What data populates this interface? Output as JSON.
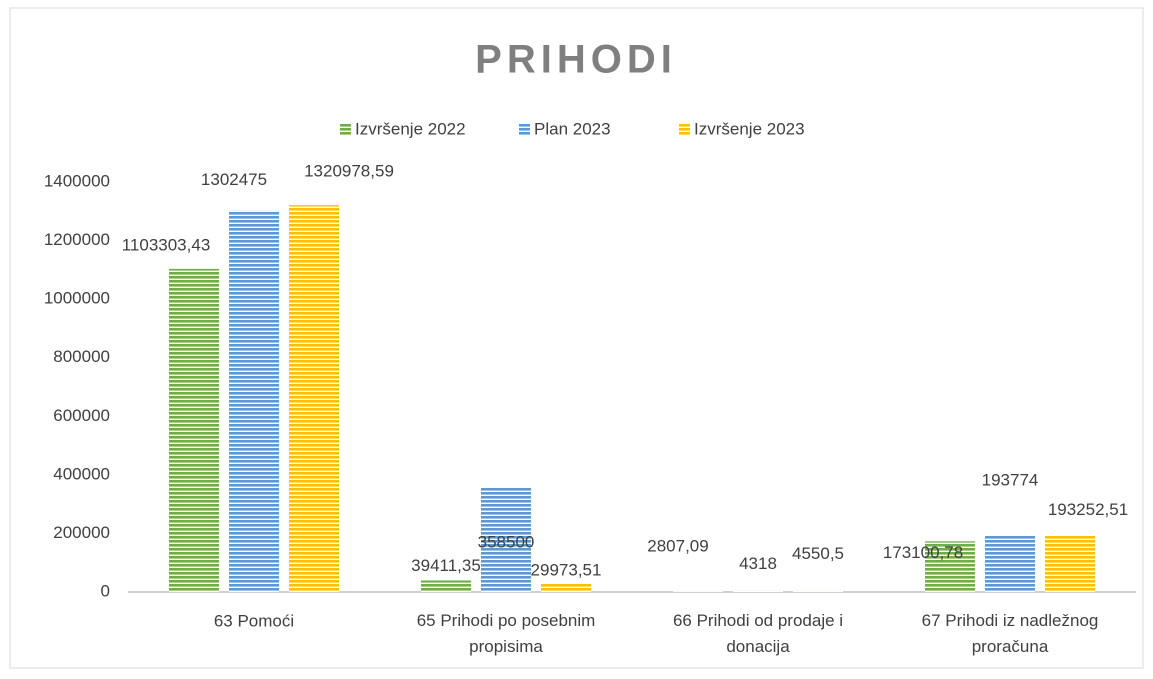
{
  "chart_data": {
    "type": "bar",
    "title": "PRIHODI",
    "categories": [
      "63 Pomoći",
      "65 Prihodi po posebnim propisima",
      "66 Prihodi od prodaje i donacija",
      "67 Prihodi iz nadležnog proračuna"
    ],
    "series": [
      {
        "name": "Izvršenje 2022",
        "color": "#70ad47",
        "values": [
          1103303.43,
          39411.35,
          2807.09,
          173100.78
        ],
        "value_labels": [
          "1103303,43",
          "39411,35",
          "2807,09",
          "173100,78"
        ]
      },
      {
        "name": "Plan 2023",
        "color": "#5b9bd5",
        "values": [
          1302475,
          358500,
          4318,
          193774
        ],
        "value_labels": [
          "1302475",
          "358500",
          "4318",
          "193774"
        ]
      },
      {
        "name": "Izvršenje 2023",
        "color": "#ffc000",
        "values": [
          1320978.59,
          29973.51,
          4550.5,
          193252.51
        ],
        "value_labels": [
          "1320978,59",
          "29973,51",
          "4550,5",
          "193252,51"
        ]
      }
    ],
    "ylim": [
      0,
      1400000
    ],
    "yticks": [
      0,
      200000,
      400000,
      600000,
      800000,
      1000000,
      1200000,
      1400000
    ],
    "grid": false,
    "legend": "top"
  }
}
